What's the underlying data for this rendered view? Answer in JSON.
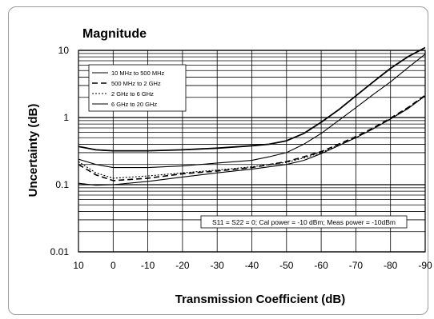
{
  "chart_data": {
    "type": "line",
    "title": "Magnitude",
    "xlabel": "Transmission Coefficient (dB)",
    "ylabel": "Uncertainty (dB)",
    "y_scale": "log",
    "xlim": [
      10,
      -90
    ],
    "ylim": [
      0.01,
      10
    ],
    "x_ticks": [
      "10",
      "0",
      "-10",
      "-20",
      "-30",
      "-40",
      "-50",
      "-60",
      "-70",
      "-80",
      "-90"
    ],
    "y_ticks": [
      "10",
      "1",
      "0.1",
      "0.01"
    ],
    "grid": true,
    "legend_position": "top-left",
    "annotation": "S11 = S22 = 0; Cal power = -10 dBm; Meas power = -10dBm",
    "series": [
      {
        "name": "10 MHz to 500 MHz",
        "style": "solid",
        "x": [
          10,
          5,
          0,
          -10,
          -20,
          -30,
          -40,
          -50,
          -55,
          -60,
          -65,
          -70,
          -75,
          -80,
          -85,
          -90
        ],
        "y": [
          0.105,
          0.098,
          0.1,
          0.112,
          0.13,
          0.15,
          0.17,
          0.2,
          0.23,
          0.29,
          0.38,
          0.5,
          0.68,
          0.95,
          1.35,
          2.1
        ]
      },
      {
        "name": "500 MHz to 2 GHz",
        "style": "dashed",
        "x": [
          10,
          5,
          0,
          -10,
          -20,
          -30,
          -40,
          -50,
          -55,
          -60,
          -65,
          -70,
          -75,
          -80,
          -85,
          -90
        ],
        "y": [
          0.2,
          0.14,
          0.115,
          0.125,
          0.145,
          0.16,
          0.18,
          0.22,
          0.26,
          0.31,
          0.4,
          0.52,
          0.7,
          0.98,
          1.4,
          2.15
        ]
      },
      {
        "name": "2 GHz to 6 GHz",
        "style": "dotted",
        "x": [
          10,
          5,
          0,
          -10,
          -20,
          -30,
          -40,
          -50,
          -55,
          -60,
          -65,
          -70,
          -75,
          -80,
          -85,
          -90
        ],
        "y": [
          0.22,
          0.15,
          0.125,
          0.135,
          0.15,
          0.165,
          0.185,
          0.215,
          0.25,
          0.3,
          0.39,
          0.5,
          0.68,
          0.96,
          1.38,
          2.12
        ]
      },
      {
        "name": "6 GHz to 20 GHz",
        "style": "solid",
        "x": [
          10,
          5,
          0,
          -10,
          -20,
          -30,
          -40,
          -45,
          -50,
          -55,
          -60,
          -65,
          -70,
          -75,
          -80,
          -85,
          -90
        ],
        "y": [
          0.24,
          0.2,
          0.18,
          0.18,
          0.19,
          0.21,
          0.23,
          0.26,
          0.3,
          0.4,
          0.58,
          0.9,
          1.4,
          2.2,
          3.4,
          5.5,
          8.8
        ]
      },
      {
        "name": "",
        "style": "solid-bold",
        "x": [
          10,
          5,
          0,
          -10,
          -20,
          -30,
          -40,
          -45,
          -50,
          -55,
          -60,
          -65,
          -70,
          -75,
          -80,
          -85,
          -90
        ],
        "y": [
          0.37,
          0.33,
          0.32,
          0.32,
          0.33,
          0.35,
          0.38,
          0.4,
          0.45,
          0.58,
          0.85,
          1.3,
          2.1,
          3.4,
          5.4,
          8.0,
          11.0
        ]
      }
    ]
  }
}
